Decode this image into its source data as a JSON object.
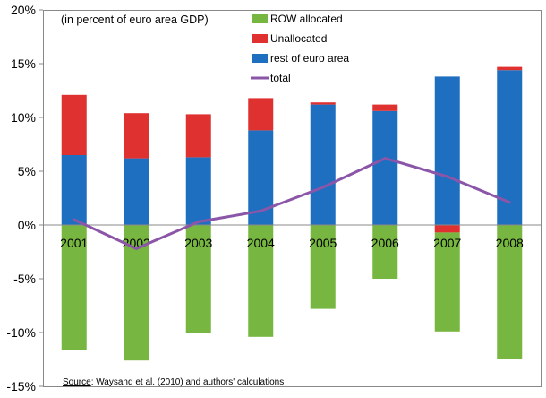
{
  "chart_data": {
    "type": "bar",
    "subtitle": "(in percent of euro area GDP)",
    "categories": [
      "2001",
      "2002",
      "2003",
      "2004",
      "2005",
      "2006",
      "2007",
      "2008"
    ],
    "ylim": [
      -15,
      20
    ],
    "yticks": [
      -15,
      -10,
      -5,
      0,
      5,
      10,
      15,
      20
    ],
    "ytick_labels": [
      "-15%",
      "-10%",
      "-5%",
      "0%",
      "5%",
      "10%",
      "15%",
      "20%"
    ],
    "grid": false,
    "legend_position": "top-center",
    "series": [
      {
        "name": "ROW allocated",
        "kind": "bar",
        "color": "#77b640",
        "values": [
          -11.6,
          -12.6,
          -10.0,
          -10.4,
          -7.8,
          -5.0,
          -9.2,
          -12.5
        ]
      },
      {
        "name": "Unallocated",
        "kind": "bar",
        "color": "#e03131",
        "values": [
          5.6,
          4.2,
          4.0,
          3.0,
          0.2,
          0.6,
          -0.7,
          0.3
        ]
      },
      {
        "name": "rest of euro area",
        "kind": "bar",
        "color": "#1f6fc0",
        "values": [
          6.5,
          6.2,
          6.3,
          8.8,
          11.2,
          10.6,
          13.8,
          14.4
        ]
      },
      {
        "name": "total",
        "kind": "line",
        "color": "#8b56a8",
        "values": [
          0.5,
          -2.2,
          0.3,
          1.3,
          3.5,
          6.2,
          4.5,
          2.1
        ]
      }
    ],
    "source": {
      "label": "Source",
      "text": ": Waysand et al. (2010) and authors' calculations"
    }
  }
}
